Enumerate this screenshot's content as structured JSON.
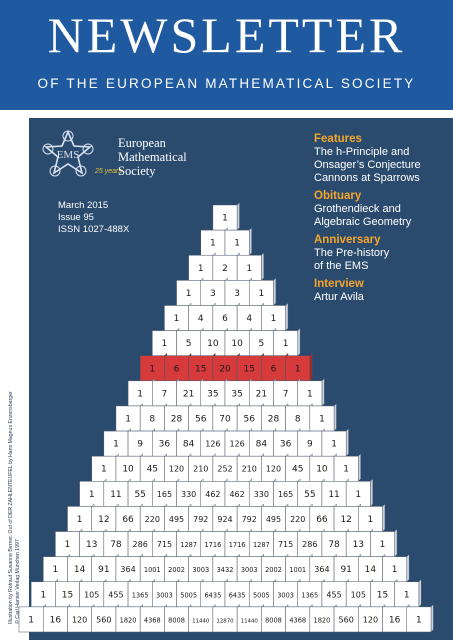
{
  "masthead": {
    "title": "NEWSLETTER",
    "subtitle": "OF THE EUROPEAN MATHEMATICAL SOCIETY"
  },
  "logo": {
    "name": "ems-logo-icon",
    "letters": "EMS",
    "years": "25 years"
  },
  "society": {
    "line1": "European",
    "line2": "Mathematical",
    "line3": "Society"
  },
  "issue": {
    "date": "March 2015",
    "number": "Issue 95",
    "issn": "ISSN 1027-488X"
  },
  "toc": [
    {
      "heading": "Features",
      "items": [
        "The h-Principle and",
        "Onsager’s Conjecture",
        "Cannons at Sparrows"
      ]
    },
    {
      "heading": "Obituary",
      "items": [
        "Grothendieck and",
        "Algebraic Geometry"
      ]
    },
    {
      "heading": "Anniversary",
      "items": [
        "The Pre-history",
        "of the EMS"
      ]
    },
    {
      "heading": "Interview",
      "items": [
        "Artur Avila"
      ]
    }
  ],
  "credit": {
    "line1": "Illustration by Rotraut Susanne Berner. Out of DER ZAHLENTEUFEL by Hans Magnus Enzensberger",
    "line2": "© Carl Hanser Verlag München 1997"
  },
  "pyramid": {
    "highlight_row": 6,
    "colors": {
      "highlight": "#d63a3a",
      "cube": "#ffffff",
      "background": "#2a4a6e",
      "masthead": "#1f5aa0",
      "toc_heading": "#f4a62a"
    },
    "rows": [
      [
        "1"
      ],
      [
        "1",
        "1"
      ],
      [
        "1",
        "2",
        "1"
      ],
      [
        "1",
        "3",
        "3",
        "1"
      ],
      [
        "1",
        "4",
        "6",
        "4",
        "1"
      ],
      [
        "1",
        "5",
        "10",
        "10",
        "5",
        "1"
      ],
      [
        "1",
        "6",
        "15",
        "20",
        "15",
        "6",
        "1"
      ],
      [
        "1",
        "7",
        "21",
        "35",
        "35",
        "21",
        "7",
        "1"
      ],
      [
        "1",
        "8",
        "28",
        "56",
        "70",
        "56",
        "28",
        "8",
        "1"
      ],
      [
        "1",
        "9",
        "36",
        "84",
        "126",
        "126",
        "84",
        "36",
        "9",
        "1"
      ],
      [
        "1",
        "10",
        "45",
        "120",
        "210",
        "252",
        "210",
        "120",
        "45",
        "10",
        "1"
      ],
      [
        "1",
        "11",
        "55",
        "165",
        "330",
        "462",
        "462",
        "330",
        "165",
        "55",
        "11",
        "1"
      ],
      [
        "1",
        "12",
        "66",
        "220",
        "495",
        "792",
        "924",
        "792",
        "495",
        "220",
        "66",
        "12",
        "1"
      ],
      [
        "1",
        "13",
        "78",
        "286",
        "715",
        "1287",
        "1716",
        "1716",
        "1287",
        "715",
        "286",
        "78",
        "13",
        "1"
      ],
      [
        "1",
        "14",
        "91",
        "364",
        "1001",
        "2002",
        "3003",
        "3432",
        "3003",
        "2002",
        "1001",
        "364",
        "91",
        "14",
        "1"
      ],
      [
        "1",
        "15",
        "105",
        "455",
        "1365",
        "3003",
        "5005",
        "6435",
        "6435",
        "5005",
        "3003",
        "1365",
        "455",
        "105",
        "15",
        "1"
      ],
      [
        "1",
        "16",
        "120",
        "560",
        "1820",
        "4368",
        "8008",
        "11440",
        "12870",
        "11440",
        "8008",
        "4368",
        "1820",
        "560",
        "120",
        "16",
        "1"
      ]
    ]
  }
}
